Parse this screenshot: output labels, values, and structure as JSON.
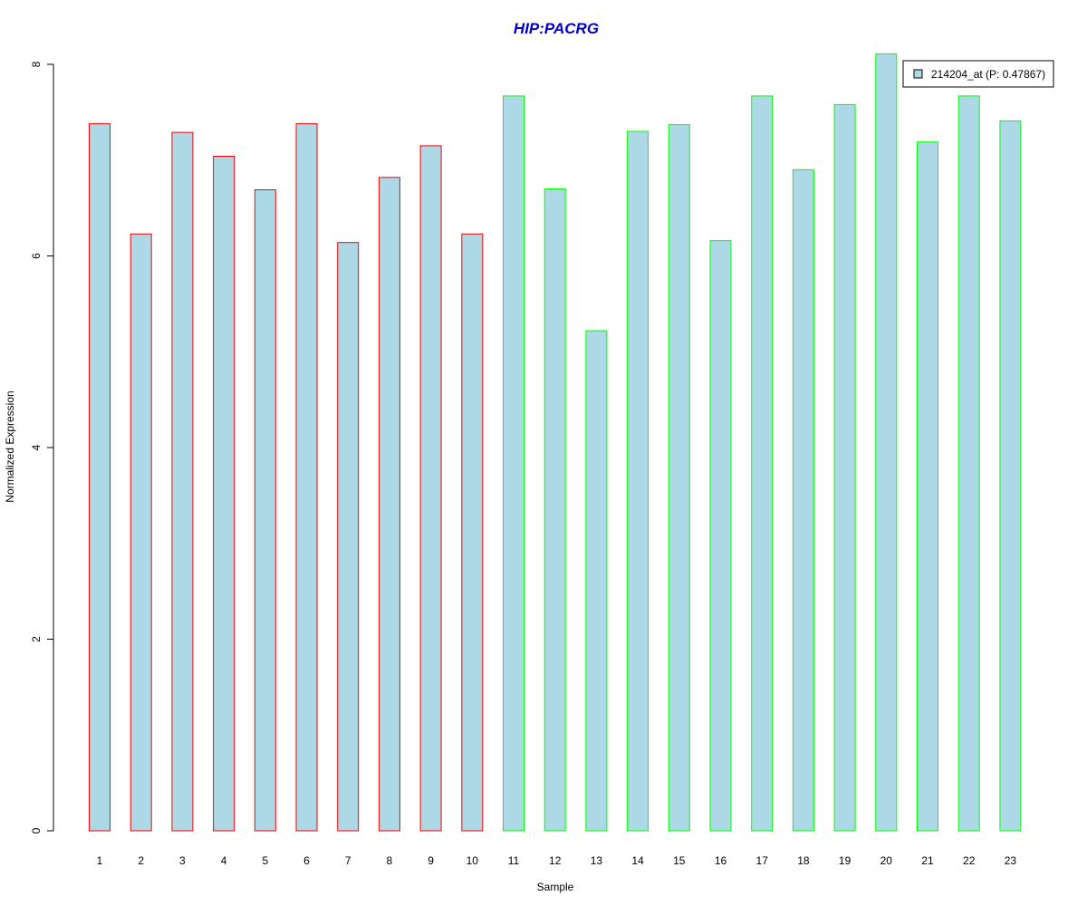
{
  "chart_data": {
    "type": "bar",
    "title": "HIP:PACRG",
    "xlabel": "Sample",
    "ylabel": "Normalized Expression",
    "categories": [
      "1",
      "2",
      "3",
      "4",
      "5",
      "6",
      "7",
      "8",
      "9",
      "10",
      "11",
      "12",
      "13",
      "14",
      "15",
      "16",
      "17",
      "18",
      "19",
      "20",
      "21",
      "22",
      "23"
    ],
    "series": [
      {
        "name": "214204_at (P: 0.47867)",
        "values": [
          7.38,
          6.23,
          7.29,
          7.04,
          6.69,
          7.38,
          6.14,
          6.82,
          7.15,
          6.23,
          7.67,
          6.7,
          5.22,
          7.3,
          7.37,
          6.16,
          7.67,
          6.9,
          7.58,
          8.11,
          7.19,
          7.67,
          7.41
        ]
      }
    ],
    "group_border_colors": [
      "#ff0000",
      "#ff0000",
      "#ff0000",
      "#ff0000",
      "#ff0000",
      "#ff0000",
      "#ff0000",
      "#ff0000",
      "#ff0000",
      "#ff0000",
      "#00ff00",
      "#00ff00",
      "#00ff00",
      "#00ff00",
      "#00ff00",
      "#00ff00",
      "#00ff00",
      "#00ff00",
      "#00ff00",
      "#00ff00",
      "#00ff00",
      "#00ff00",
      "#00ff00"
    ],
    "bar_fill": "#add8e6",
    "title_color": "#0000cd",
    "yticks": [
      "0",
      "2",
      "4",
      "6",
      "8"
    ],
    "ylim": [
      0,
      8
    ],
    "grid": false,
    "legend_position": "top-right"
  }
}
